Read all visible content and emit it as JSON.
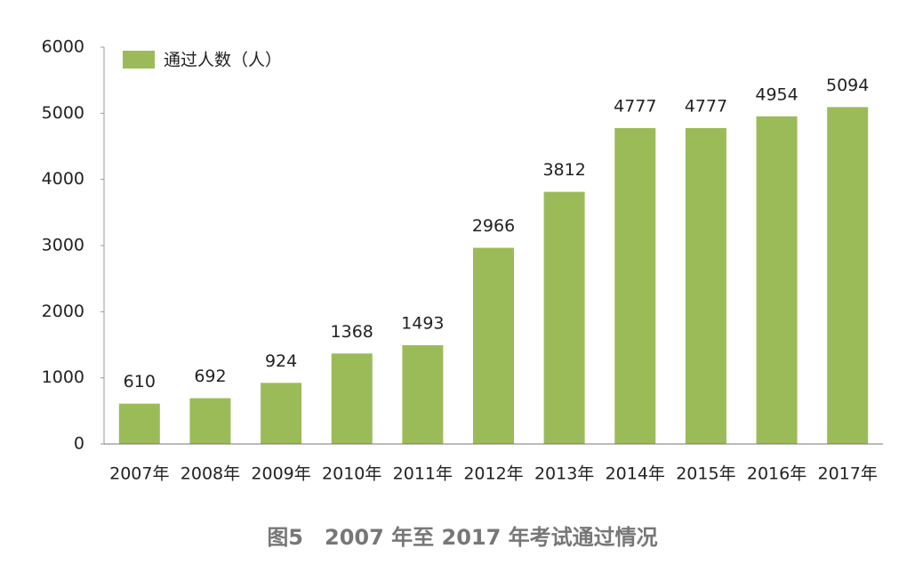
{
  "chart_data": {
    "type": "bar",
    "title": "图5　2007 年至 2017 年考试通过情况",
    "categories": [
      "2007年",
      "2008年",
      "2009年",
      "2010年",
      "2011年",
      "2012年",
      "2013年",
      "2014年",
      "2015年",
      "2016年",
      "2017年"
    ],
    "series": [
      {
        "name": "通过人数（人）",
        "color": "#9bbb59",
        "values": [
          610,
          692,
          924,
          1368,
          1493,
          2966,
          3812,
          4777,
          4777,
          4954,
          5094
        ]
      }
    ],
    "ylim": [
      0,
      6000
    ],
    "yticks": [
      0,
      1000,
      2000,
      3000,
      4000,
      5000,
      6000
    ],
    "grid": false,
    "legend": "top-left"
  }
}
